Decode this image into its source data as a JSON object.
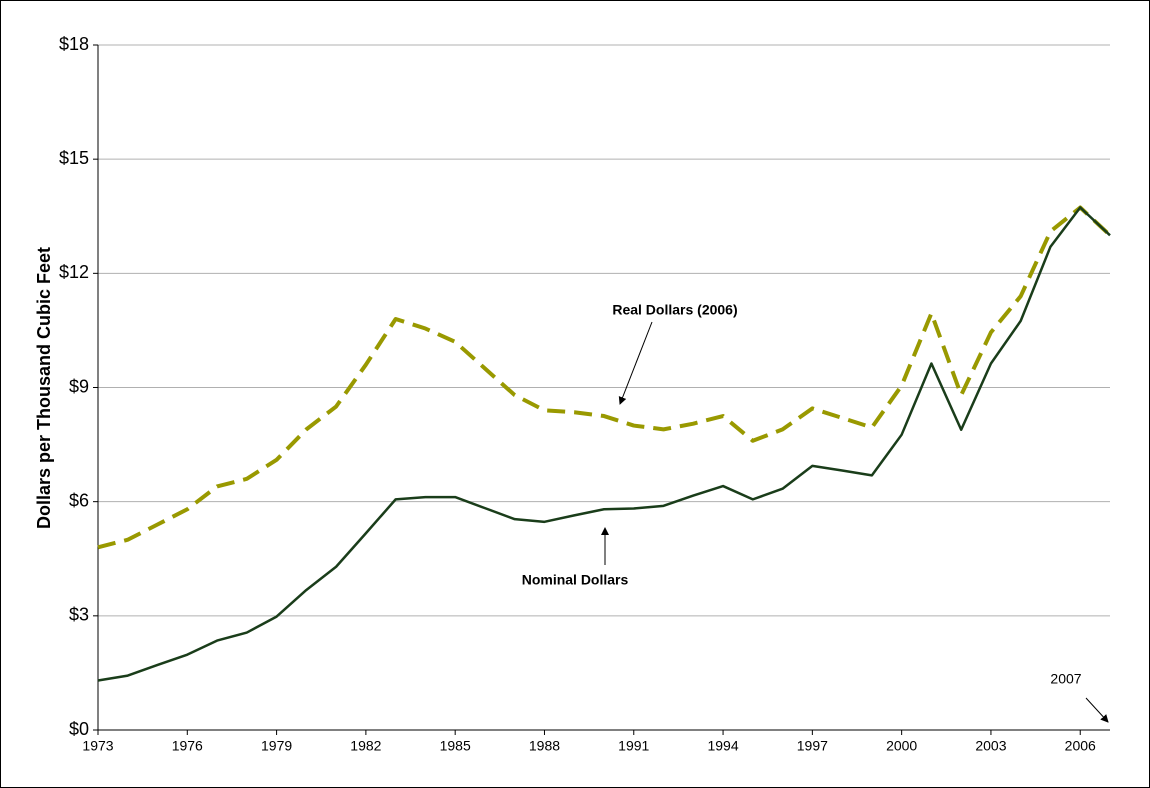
{
  "chart_data": {
    "type": "line",
    "y_label": "Dollars per Thousand Cubic Feet",
    "x": [
      1973,
      1974,
      1975,
      1976,
      1977,
      1978,
      1979,
      1980,
      1981,
      1982,
      1983,
      1984,
      1985,
      1986,
      1987,
      1988,
      1989,
      1990,
      1991,
      1992,
      1993,
      1994,
      1995,
      1996,
      1997,
      1998,
      1999,
      2000,
      2001,
      2002,
      2003,
      2004,
      2005,
      2006,
      2007
    ],
    "series": [
      {
        "name": "Real Dollars (2006)",
        "color": "#999900",
        "dashed": true,
        "values": [
          4.8,
          5.0,
          5.4,
          5.8,
          6.4,
          6.6,
          7.1,
          7.9,
          8.5,
          9.6,
          10.8,
          10.55,
          10.2,
          9.5,
          8.8,
          8.4,
          8.35,
          8.25,
          8.0,
          7.9,
          8.05,
          8.25,
          7.6,
          7.9,
          8.45,
          8.2,
          7.95,
          9.05,
          10.95,
          8.8,
          10.45,
          11.4,
          13.1,
          13.73,
          13.0
        ]
      },
      {
        "name": "Nominal Dollars",
        "color": "#1a3d1a",
        "dashed": false,
        "values": [
          1.3,
          1.43,
          1.71,
          1.98,
          2.35,
          2.56,
          2.98,
          3.68,
          4.29,
          5.17,
          6.06,
          6.12,
          6.12,
          5.83,
          5.54,
          5.47,
          5.64,
          5.8,
          5.82,
          5.89,
          6.16,
          6.41,
          6.06,
          6.34,
          6.94,
          6.82,
          6.69,
          7.76,
          9.63,
          7.89,
          9.63,
          10.75,
          12.7,
          13.73,
          13.0
        ]
      }
    ],
    "annotations": [
      "2007"
    ],
    "xlim": [
      1973,
      2007
    ],
    "xticks": [
      1973,
      1976,
      1979,
      1982,
      1985,
      1988,
      1991,
      1994,
      1997,
      2000,
      2003,
      2006
    ],
    "ylim": [
      0,
      18
    ],
    "yticks": [
      {
        "value": 0,
        "label": "$0"
      },
      {
        "value": 3,
        "label": "$3"
      },
      {
        "value": 6,
        "label": "$6"
      },
      {
        "value": 9,
        "label": "$9"
      },
      {
        "value": 12,
        "label": "$12"
      },
      {
        "value": 15,
        "label": "$15"
      },
      {
        "value": 18,
        "label": "$18"
      }
    ],
    "grid": true
  }
}
